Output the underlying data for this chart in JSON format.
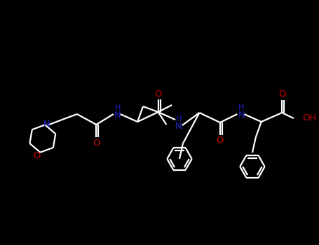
{
  "bg": "#000000",
  "wc": "#ffffff",
  "Nc": "#2222cc",
  "Oc": "#cc0000",
  "lw": 1.6,
  "fs": 8.5,
  "figsize": [
    4.55,
    3.5
  ],
  "dpi": 100,
  "xlim": [
    0,
    455
  ],
  "ylim": [
    0,
    350
  ]
}
